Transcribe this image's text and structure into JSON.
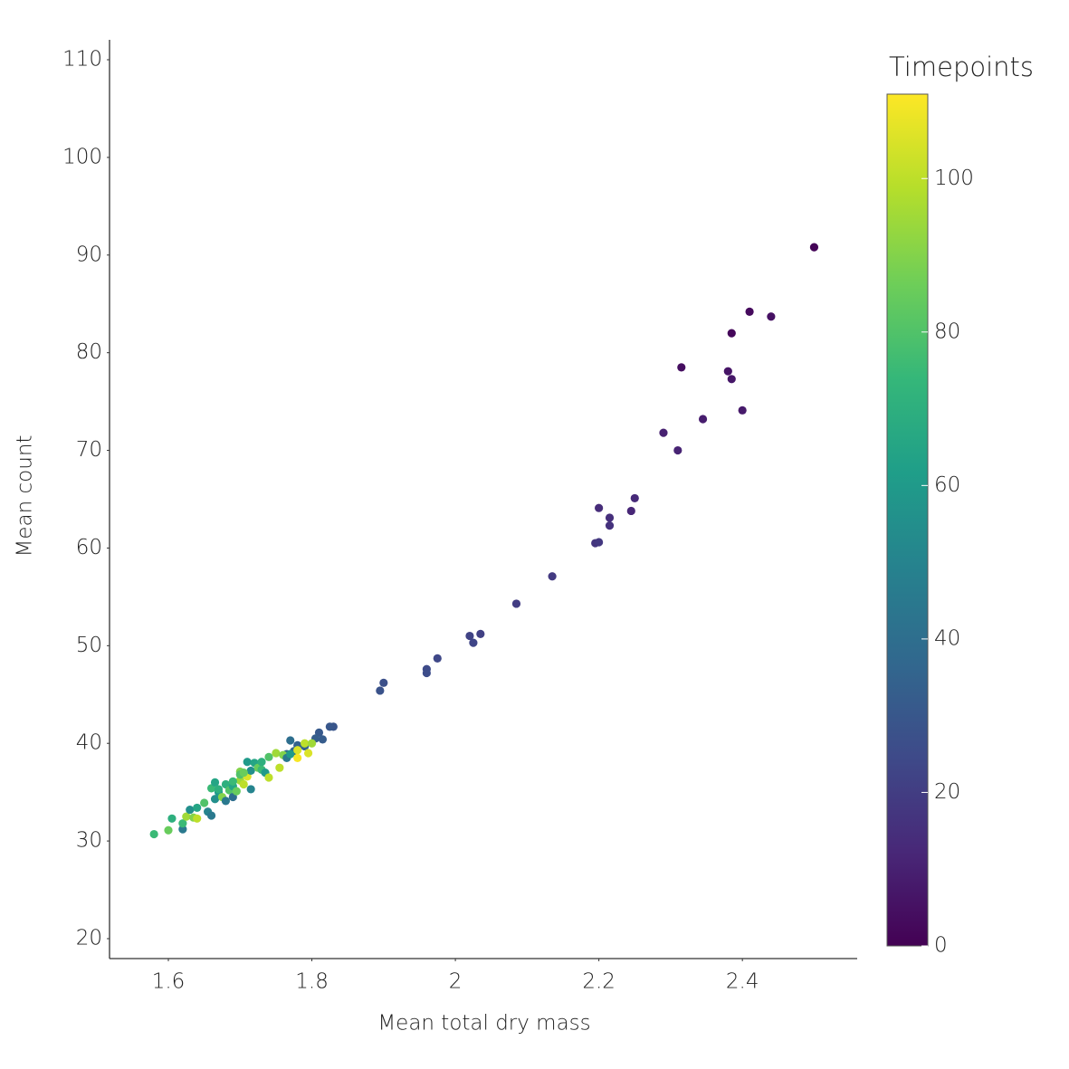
{
  "chart_data": {
    "type": "scatter",
    "x_label": "Mean total dry mass",
    "y_label": "Mean count",
    "colorbar_title": "Timepoints",
    "colormap": "viridis",
    "clim": [
      0,
      111
    ],
    "cticks": [
      0,
      20,
      40,
      60,
      80,
      100
    ],
    "xlim": [
      1.518,
      2.56
    ],
    "xticks": [
      1.6,
      1.8,
      2,
      2.2,
      2.4
    ],
    "ylim": [
      17.96,
      112.04
    ],
    "yticks": [
      20,
      30,
      40,
      50,
      60,
      70,
      80,
      90,
      100,
      110
    ],
    "grid": false,
    "x": [
      2.5,
      2.41,
      2.44,
      2.385,
      2.315,
      2.38,
      2.385,
      2.4,
      2.345,
      2.29,
      2.31,
      2.25,
      2.2,
      2.215,
      2.245,
      2.215,
      2.195,
      2.2,
      2.135,
      2.085,
      2.02,
      2.035,
      2.025,
      1.975,
      1.96,
      1.96,
      1.9,
      1.895,
      1.83,
      1.825,
      1.81,
      1.815,
      1.805,
      1.77,
      1.78,
      1.79,
      1.775,
      1.765,
      1.58,
      1.6,
      1.605,
      1.62,
      1.62,
      1.625,
      1.63,
      1.635,
      1.64,
      1.64,
      1.65,
      1.655,
      1.66,
      1.66,
      1.665,
      1.665,
      1.67,
      1.675,
      1.68,
      1.68,
      1.685,
      1.69,
      1.69,
      1.695,
      1.7,
      1.7,
      1.705,
      1.71,
      1.71,
      1.715,
      1.715,
      1.72,
      1.725,
      1.73,
      1.73,
      1.735,
      1.74,
      1.74,
      1.75,
      1.755,
      1.76,
      1.765,
      1.77,
      1.78,
      1.78,
      1.79,
      1.795,
      1.8,
      1.7,
      1.67,
      1.69,
      1.705
    ],
    "y": [
      90.8,
      84.2,
      83.7,
      82,
      78.5,
      78.1,
      77.3,
      74.1,
      73.2,
      71.8,
      70,
      65.1,
      64.1,
      63.1,
      63.8,
      62.3,
      60.5,
      60.6,
      57.1,
      54.3,
      51,
      51.2,
      50.3,
      48.7,
      47.6,
      47.2,
      46.2,
      45.4,
      41.7,
      41.7,
      41.1,
      40.4,
      40.5,
      40.3,
      39.8,
      39.7,
      39.2,
      38.9,
      30.7,
      31.1,
      32.3,
      31.2,
      31.8,
      32.5,
      33.2,
      32.4,
      33.4,
      32.3,
      33.9,
      33,
      32.6,
      35.4,
      36,
      34.3,
      35,
      34.5,
      35.8,
      34.1,
      35.2,
      34.5,
      35.6,
      35.1,
      36.2,
      37.1,
      35.8,
      36.6,
      38.1,
      37.2,
      35.3,
      38,
      37.5,
      38.1,
      37.3,
      37,
      36.5,
      38.6,
      39,
      37.5,
      38.8,
      38.5,
      38.9,
      39.3,
      38.5,
      40,
      39,
      40,
      36.8,
      35.3,
      36.1,
      37
    ],
    "color_values": [
      1,
      3,
      5,
      2,
      4,
      6,
      7,
      8,
      9,
      10,
      11,
      13,
      14,
      15,
      12,
      16,
      17,
      18,
      19,
      20,
      22,
      21,
      23,
      24,
      25,
      26,
      27,
      28,
      29,
      30,
      31,
      32,
      33,
      40,
      34,
      35,
      36,
      37,
      75,
      85,
      70,
      45,
      75,
      95,
      55,
      90,
      65,
      100,
      80,
      50,
      45,
      75,
      65,
      55,
      60,
      90,
      70,
      45,
      80,
      40,
      65,
      85,
      95,
      90,
      100,
      105,
      60,
      55,
      50,
      65,
      85,
      70,
      75,
      60,
      100,
      80,
      95,
      100,
      90,
      45,
      60,
      105,
      110,
      100,
      105,
      95,
      80,
      70,
      75,
      85
    ]
  }
}
